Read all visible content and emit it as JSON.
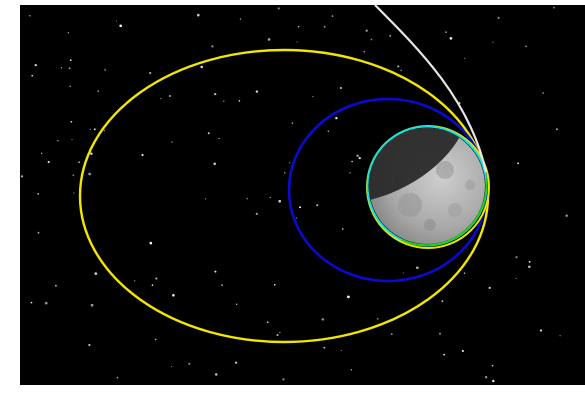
{
  "colors": {
    "space": "#000000",
    "border": "#ffffff",
    "approach_trajectory": "#e6e6e6",
    "outer_orbit": "#f2e600",
    "middle_orbit": "#0a0ad2",
    "inner_orbit_yellow": "#e8e400",
    "inner_orbit_cyan": "#18e0e0",
    "inner_orbit_green": "#20d020",
    "moon_lit": "#b9b9b9",
    "moon_shadow": "#2e2e2e",
    "stars": "#ffffff"
  },
  "elements": {
    "moon": "moon-lit-gibbous",
    "trajectory": "incoming-hyperbolic-arc",
    "orbits": [
      "outer-elliptical-orbit",
      "middle-elliptical-orbit",
      "inner-near-circular-orbit"
    ]
  }
}
